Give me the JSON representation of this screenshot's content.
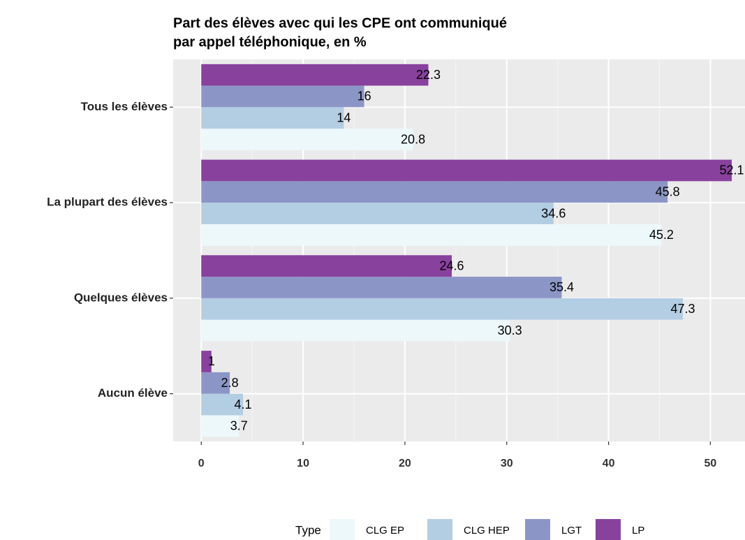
{
  "chart_data": {
    "type": "bar",
    "orientation": "horizontal",
    "title": [
      "Part des élèves avec qui les CPE ont communiqué",
      "par appel téléphonique, en %"
    ],
    "categories": [
      "Tous les élèves",
      "La plupart des élèves",
      "Quelques élèves",
      "Aucun élève"
    ],
    "legend_title": "Type",
    "legend": "bottom",
    "grid": true,
    "series": [
      {
        "name": "CLG EP",
        "color": "#edf8fb",
        "values": [
          20.8,
          45.2,
          30.3,
          3.7
        ]
      },
      {
        "name": "CLG HEP",
        "color": "#b3cde3",
        "values": [
          14,
          34.6,
          47.3,
          4.1
        ]
      },
      {
        "name": "LGT",
        "color": "#8c96c6",
        "values": [
          16,
          45.8,
          35.4,
          2.8
        ]
      },
      {
        "name": "LP",
        "color": "#88419d",
        "values": [
          22.3,
          52.1,
          24.6,
          1
        ]
      }
    ],
    "xlim": [
      -2.76,
      53.4
    ],
    "xticks": [
      0,
      10,
      20,
      30,
      40,
      50
    ]
  }
}
